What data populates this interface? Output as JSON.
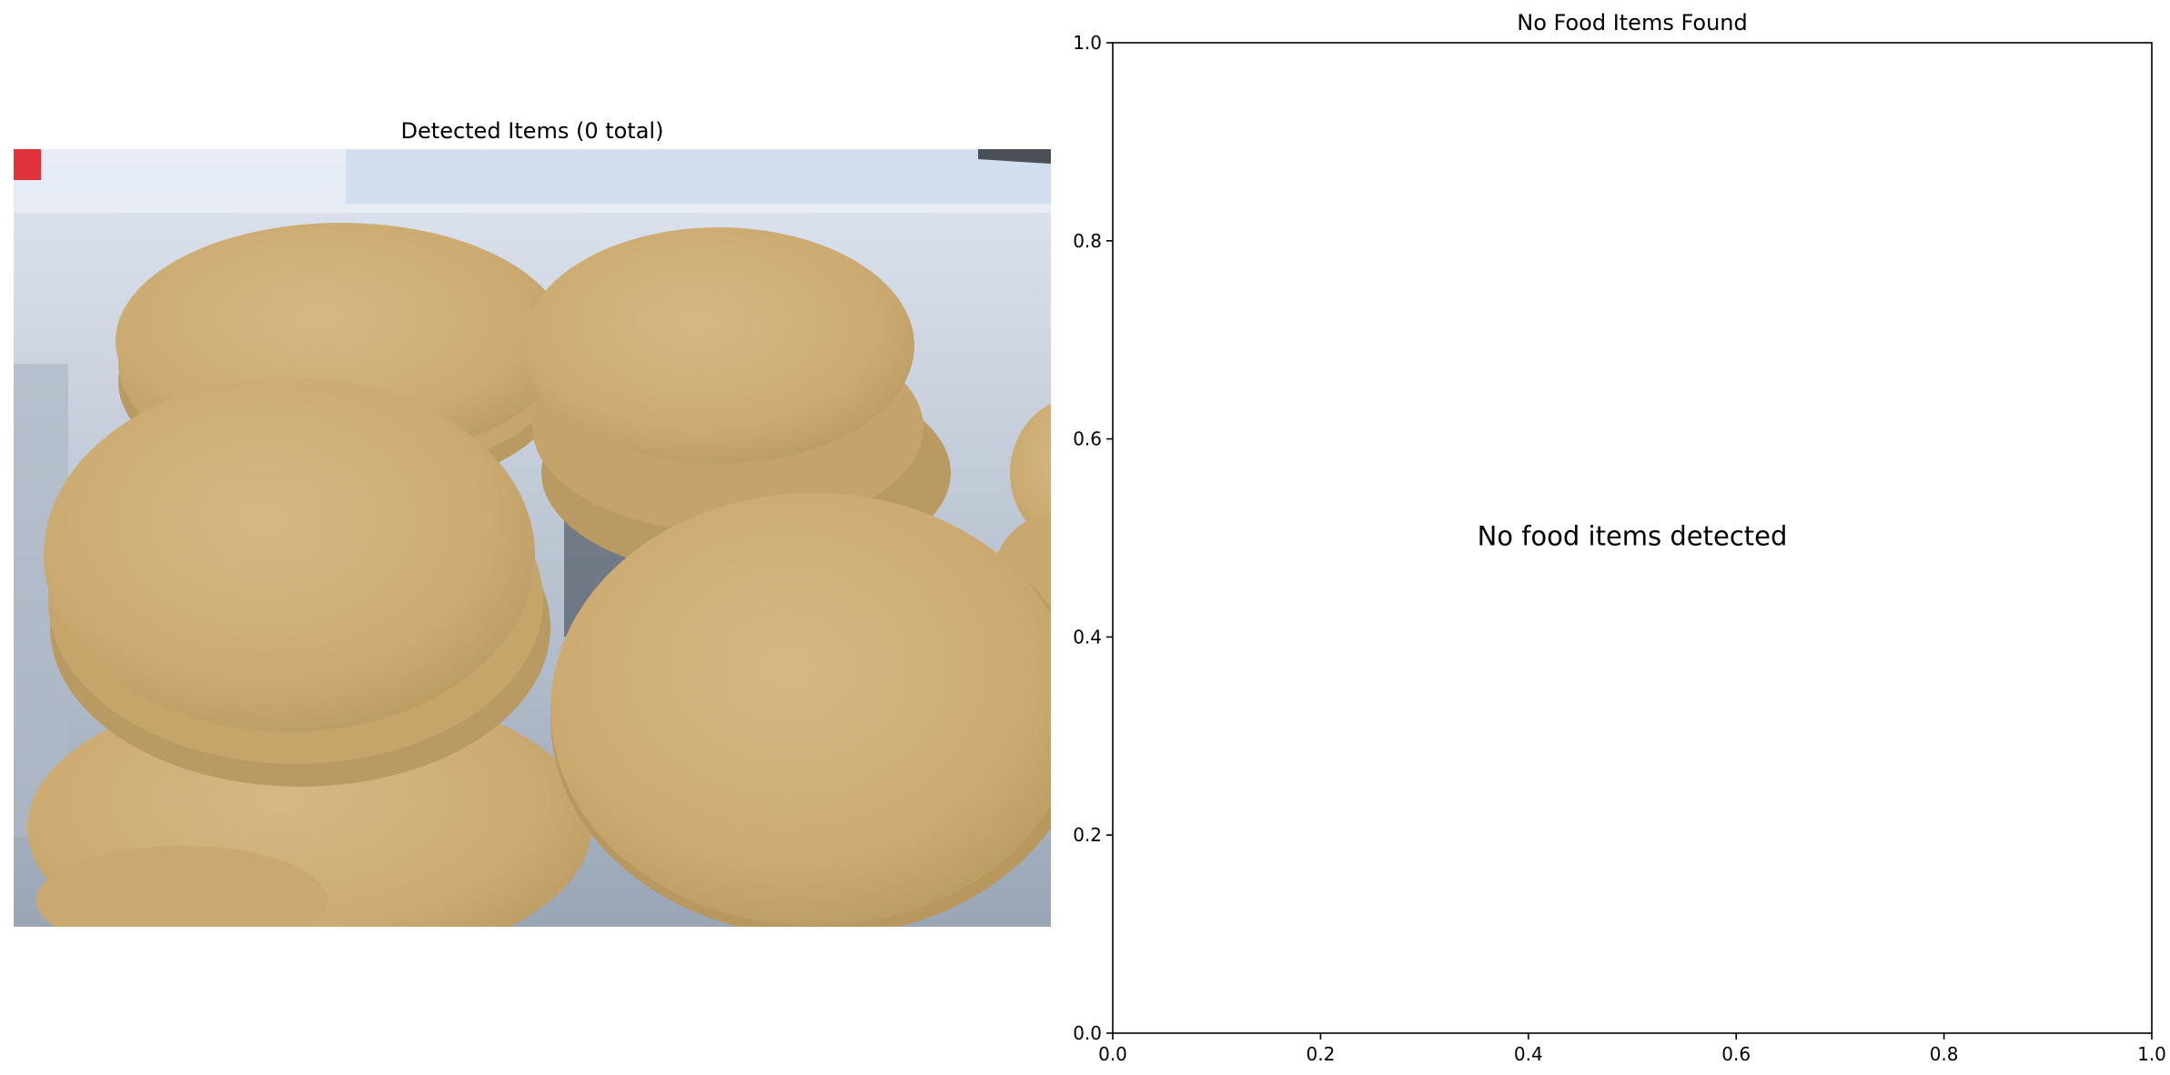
{
  "left_panel": {
    "title": "Detected Items (0 total)"
  },
  "chart_data": {
    "type": "scatter",
    "title": "No Food Items Found",
    "xlabel": "",
    "ylabel": "",
    "xlim": [
      0.0,
      1.0
    ],
    "ylim": [
      0.0,
      1.0
    ],
    "x_ticks": [
      0.0,
      0.2,
      0.4,
      0.6,
      0.8,
      1.0
    ],
    "y_ticks": [
      0.0,
      0.2,
      0.4,
      0.6,
      0.8,
      1.0
    ],
    "x_tick_labels": [
      "0.0",
      "0.2",
      "0.4",
      "0.6",
      "0.8",
      "1.0"
    ],
    "y_tick_labels": [
      "0.0",
      "0.2",
      "0.4",
      "0.6",
      "0.8",
      "1.0"
    ],
    "series": [],
    "grid": false,
    "annotation": {
      "text": "No food items detected",
      "x": 0.5,
      "y": 0.5
    }
  },
  "colors": {
    "cookie": "#d2b27c",
    "cookie_dark": "#b8955e",
    "container": "#c9d3e2",
    "background": "#ffffff",
    "accent_red": "#e0323a"
  }
}
